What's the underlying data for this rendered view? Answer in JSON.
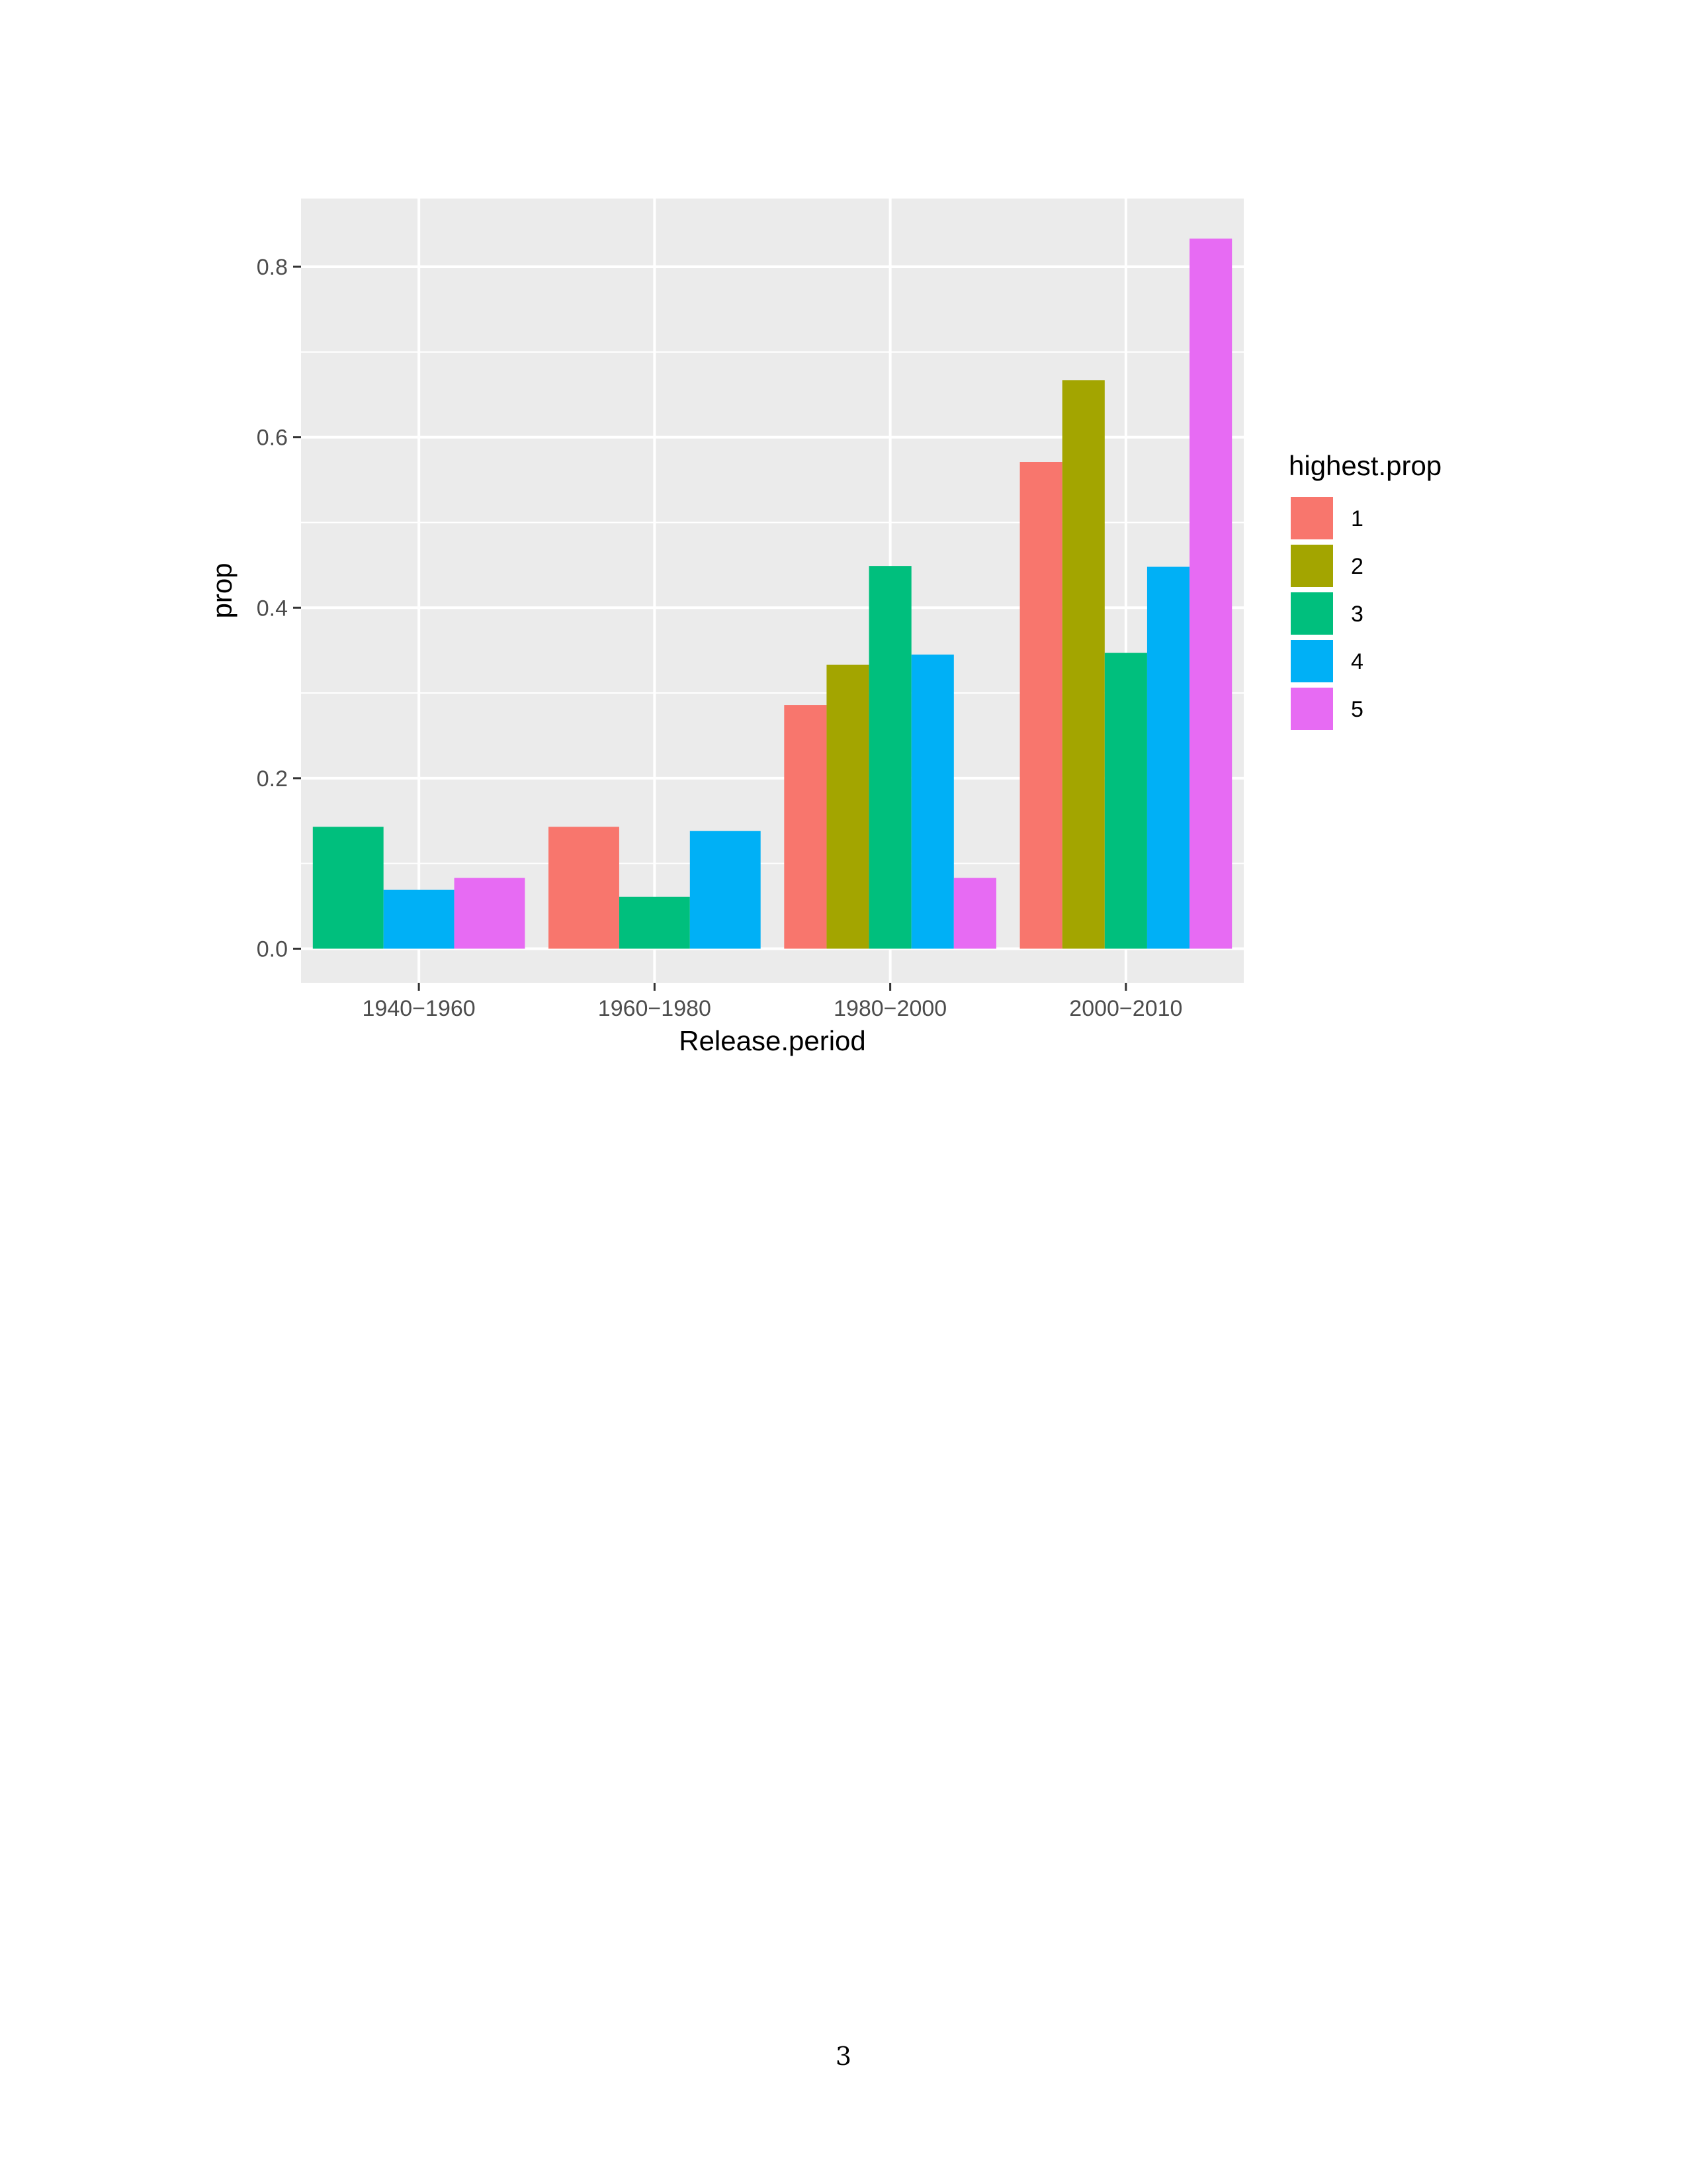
{
  "chart_data": {
    "type": "bar",
    "title": "",
    "xlabel": "Release.period",
    "ylabel": "prop",
    "categories": [
      "1940−1960",
      "1960−1980",
      "1980−2000",
      "2000−2010"
    ],
    "ylim": [
      -0.04,
      0.88
    ],
    "yticks": [
      0.0,
      0.2,
      0.4,
      0.6,
      0.8
    ],
    "ytick_labels": [
      "0.0",
      "0.2",
      "0.4",
      "0.6",
      "0.8"
    ],
    "grid": true,
    "legend": {
      "title": "highest.prop",
      "placement": "right"
    },
    "series": [
      {
        "name": "1",
        "color": "#F8766D",
        "values": [
          null,
          0.143,
          0.286,
          0.571
        ]
      },
      {
        "name": "2",
        "color": "#A3A500",
        "values": [
          null,
          null,
          0.333,
          0.667
        ]
      },
      {
        "name": "3",
        "color": "#00BF7D",
        "values": [
          0.143,
          0.061,
          0.449,
          0.347
        ]
      },
      {
        "name": "4",
        "color": "#00B0F6",
        "values": [
          0.069,
          0.138,
          0.345,
          0.448
        ]
      },
      {
        "name": "5",
        "color": "#E76BF3",
        "values": [
          0.083,
          null,
          0.083,
          0.833
        ]
      }
    ]
  },
  "page": {
    "number": "3"
  }
}
